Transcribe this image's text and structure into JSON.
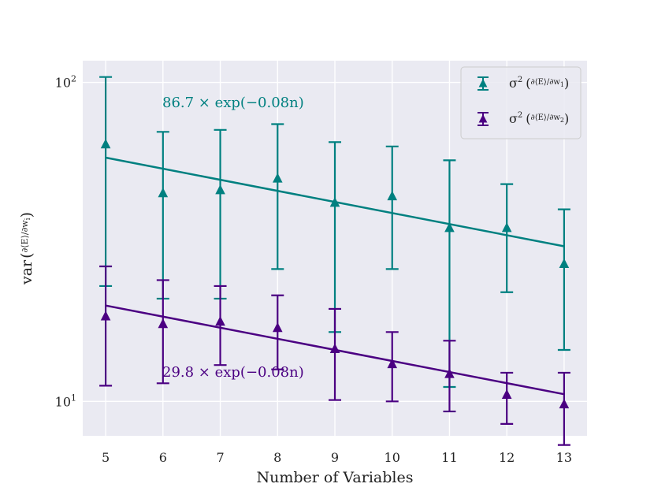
{
  "chart_data": {
    "type": "scatter",
    "scale": {
      "y": "log"
    },
    "xlabel": "Number of Variables",
    "ylabel": {
      "prefix": "var",
      "inner": "∂⟨E⟩/∂w",
      "sub": "i"
    },
    "xlim": [
      4.6,
      13.4
    ],
    "ylim": [
      7.8,
      117
    ],
    "grid": true,
    "legend_position": "top-right",
    "x_ticks": [
      5,
      6,
      7,
      8,
      9,
      10,
      11,
      12,
      13
    ],
    "y_ticks": [
      {
        "value": 10,
        "base": "10",
        "exp": "1"
      },
      {
        "value": 100,
        "base": "10",
        "exp": "2"
      }
    ],
    "series": [
      {
        "name": "σ² (∂⟨E⟩/∂w₁)",
        "legend": {
          "base": "σ",
          "sup": "2",
          "inner": "∂⟨E⟩/∂w",
          "sub": "1"
        },
        "color": "#008080",
        "marker": "triangle-up",
        "x": [
          5,
          6,
          7,
          8,
          9,
          10,
          11,
          12,
          13
        ],
        "y": [
          64,
          45,
          46,
          50,
          42,
          44,
          35,
          35,
          27
        ],
        "err_low": [
          23,
          21,
          21,
          26,
          16.5,
          26,
          11.1,
          22,
          14.5
        ],
        "err_high": [
          104,
          70,
          71,
          74,
          65,
          63,
          57,
          48,
          40
        ],
        "fit": {
          "a": 86.7,
          "b": -0.08,
          "label": "86.7 × exp(−0.08n)"
        }
      },
      {
        "name": "σ² (∂⟨E⟩/∂w₂)",
        "legend": {
          "base": "σ",
          "sup": "2",
          "inner": "∂⟨E⟩/∂w",
          "sub": "2"
        },
        "color": "#4b0082",
        "marker": "triangle-up",
        "x": [
          5,
          6,
          7,
          8,
          9,
          10,
          11,
          12,
          13
        ],
        "y": [
          18.5,
          17.5,
          17.8,
          17,
          14.6,
          13.1,
          12.2,
          10.5,
          9.8
        ],
        "err_low": [
          11.2,
          11.4,
          13,
          12.6,
          10.1,
          10,
          9.3,
          8.5,
          7.3
        ],
        "err_high": [
          26.5,
          24,
          23,
          21.5,
          19.5,
          16.5,
          15.5,
          12.3,
          12.3
        ],
        "fit": {
          "a": 29.8,
          "b": -0.08,
          "label": "29.8 × exp(−0.08n)"
        }
      }
    ]
  }
}
